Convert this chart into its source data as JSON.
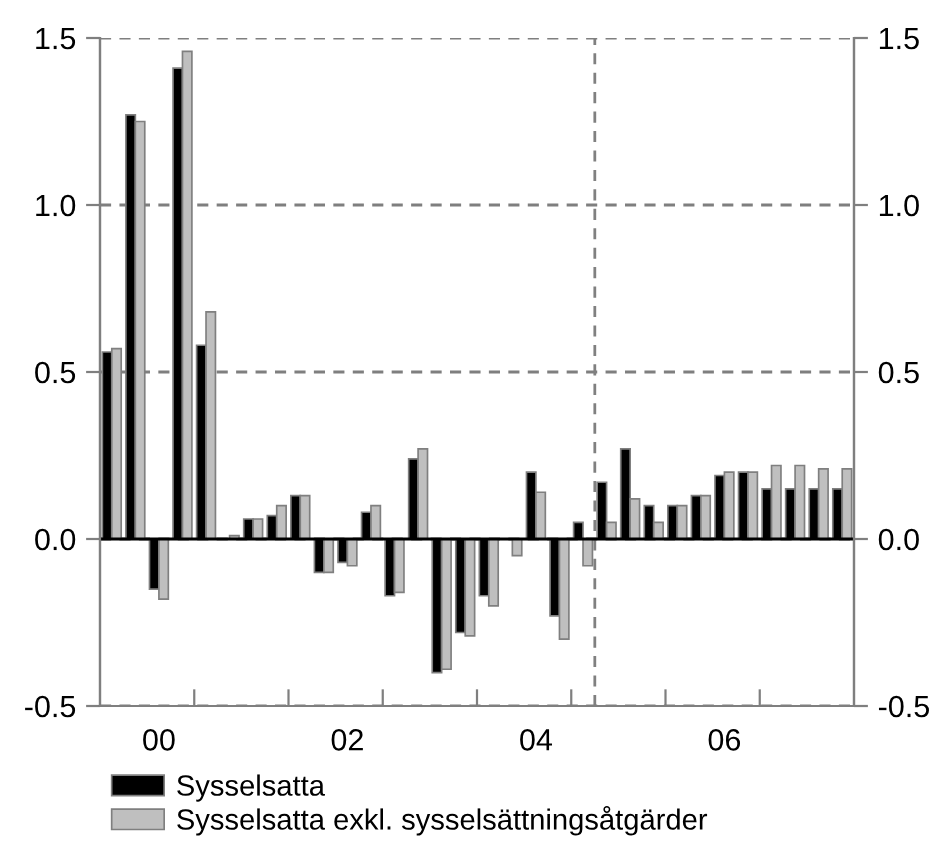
{
  "chart_data": {
    "type": "bar",
    "categories": [
      null,
      null,
      "00",
      null,
      null,
      null,
      null,
      null,
      null,
      null,
      "02",
      null,
      null,
      null,
      null,
      null,
      null,
      null,
      "04",
      null,
      null,
      null,
      null,
      null,
      null,
      null,
      "06",
      null,
      null,
      null,
      null,
      null
    ],
    "series": [
      {
        "name": "Sysselsatta",
        "color": "#000000",
        "values": [
          0.56,
          1.27,
          -0.15,
          1.41,
          0.58,
          0.0,
          0.06,
          0.07,
          0.13,
          -0.1,
          -0.07,
          0.08,
          -0.17,
          0.24,
          -0.4,
          -0.28,
          -0.17,
          0.0,
          0.2,
          -0.23,
          0.05,
          0.17,
          0.27,
          0.1,
          0.1,
          0.13,
          0.19,
          0.2,
          0.15,
          0.15,
          0.15,
          0.15
        ]
      },
      {
        "name": "Sysselsatta exkl. sysselsättningsåtgärder",
        "color": "#bfbfbf",
        "values": [
          0.57,
          1.25,
          -0.18,
          1.46,
          0.68,
          0.01,
          0.06,
          0.1,
          0.13,
          -0.1,
          -0.08,
          0.1,
          -0.16,
          0.27,
          -0.39,
          -0.29,
          -0.2,
          -0.05,
          0.14,
          -0.3,
          -0.08,
          0.05,
          0.12,
          0.05,
          0.1,
          0.13,
          0.2,
          0.2,
          0.22,
          0.22,
          0.21,
          0.21
        ]
      }
    ],
    "ylim": [
      -0.5,
      1.5
    ],
    "yticks": [
      -0.5,
      {
        "value": 0,
        "label": "0.0"
      },
      0.5,
      {
        "value": 1,
        "label": "1.0"
      },
      1.5
    ],
    "y2lim": [
      -0.5,
      1.5
    ],
    "y2ticks": [
      -0.5,
      {
        "value": 0,
        "label": "0.0"
      },
      0.5,
      {
        "value": 1,
        "label": "1.0"
      },
      1.5
    ],
    "ref_lines": [
      {
        "axis": "y",
        "value": 0,
        "color": "#000000",
        "line_style": "solid"
      }
    ],
    "grid": "y",
    "legend": "bottom"
  }
}
